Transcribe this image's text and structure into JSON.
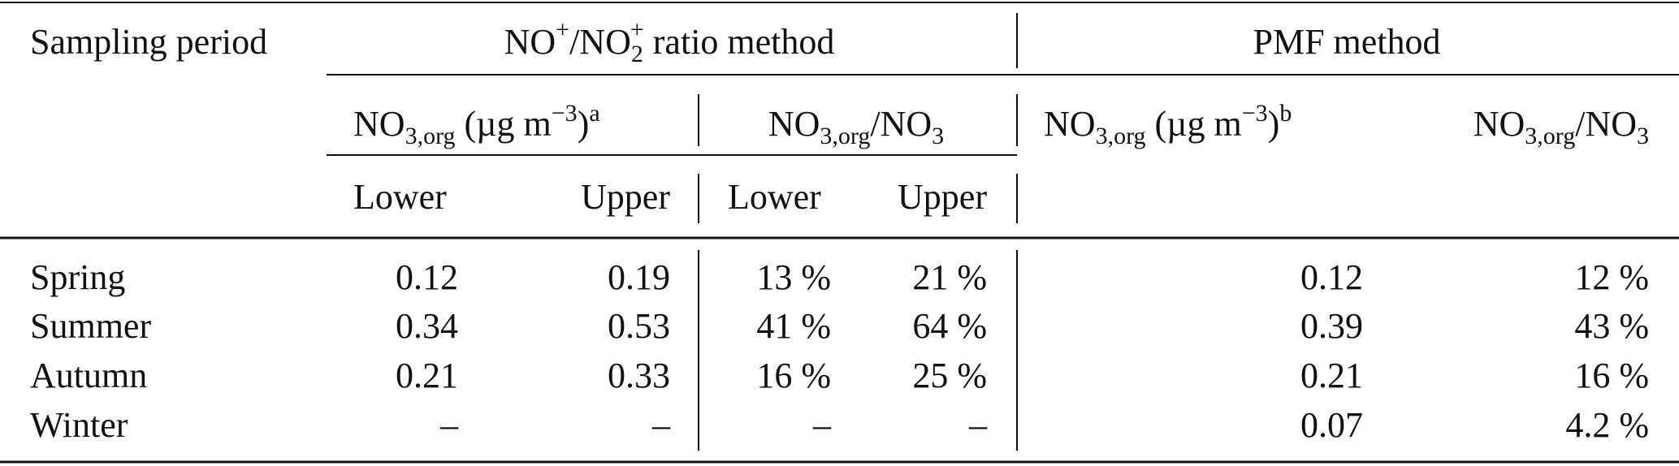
{
  "header": {
    "sampling_period": "Sampling period",
    "ratio_method": [
      "NO",
      "+",
      "/NO",
      "2",
      "+",
      " ratio method"
    ],
    "pmf_method": "PMF method",
    "no3org_a": [
      "NO",
      "3,org",
      " (µg m",
      "−3",
      ")",
      "a"
    ],
    "ratio_col": [
      "NO",
      "3,org",
      "/NO",
      "3"
    ],
    "no3org_b": [
      "NO",
      "3,org",
      " (µg m",
      "−3",
      ")",
      "b"
    ],
    "pmf_ratio_col": [
      "NO",
      "3,org",
      "/NO",
      "3"
    ],
    "lower_1": "Lower",
    "upper_1": "Upper",
    "lower_2": "Lower",
    "upper_2": "Upper"
  },
  "rows": [
    [
      "Spring",
      "0.12",
      "0.19",
      "13 %",
      "21 %",
      "0.12",
      "12 %"
    ],
    [
      "Summer",
      "0.34",
      "0.53",
      "41 %",
      "64 %",
      "0.39",
      "43 %"
    ],
    [
      "Autumn",
      "0.21",
      "0.33",
      "16 %",
      "25 %",
      "0.21",
      "16 %"
    ],
    [
      "Winter",
      "–",
      "–",
      "–",
      "–",
      "0.07",
      "4.2 %"
    ]
  ]
}
